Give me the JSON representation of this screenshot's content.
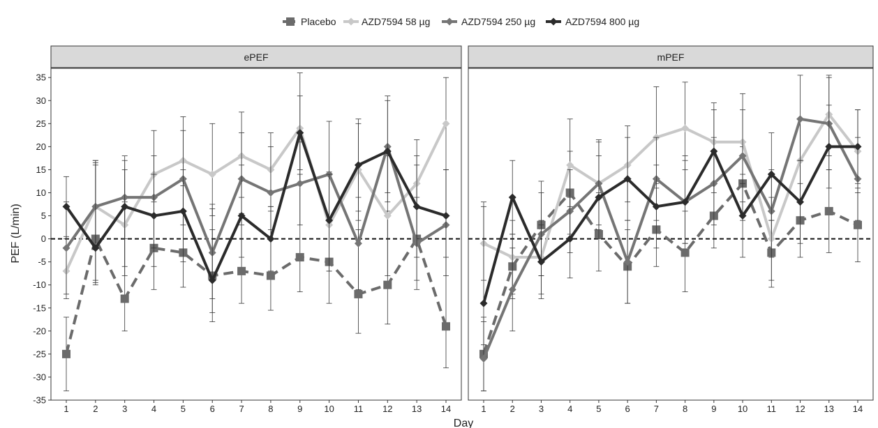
{
  "chart_data": {
    "type": "line",
    "xlabel": "Day",
    "ylabel": "PEF (L/min)",
    "ylim": [
      -35,
      37
    ],
    "yticks": [
      -35,
      -30,
      -25,
      -20,
      -15,
      -10,
      -5,
      0,
      5,
      10,
      15,
      20,
      25,
      30,
      35
    ],
    "x": [
      1,
      2,
      3,
      4,
      5,
      6,
      7,
      8,
      9,
      10,
      11,
      12,
      13,
      14
    ],
    "legend_position": "top",
    "reference_line": 0,
    "series_styles": [
      {
        "color": "#6b6b6b",
        "dash": "dashed",
        "marker": "square"
      },
      {
        "color": "#c8c8c8",
        "dash": "solid",
        "marker": "diamond"
      },
      {
        "color": "#757575",
        "dash": "solid",
        "marker": "diamond"
      },
      {
        "color": "#2b2b2b",
        "dash": "solid",
        "marker": "diamond"
      }
    ],
    "panels": [
      {
        "title": "ePEF",
        "series": [
          {
            "name": "Placebo",
            "values": [
              -25,
              0,
              -13,
              -2,
              -3,
              -8,
              -7,
              -8,
              -4,
              -5,
              -12,
              -10,
              0,
              -19
            ],
            "err_low": [
              -33,
              -9.5,
              -20,
              -11,
              -10.5,
              -16,
              -14,
              -15.5,
              -11.5,
              -14,
              -20.5,
              -18.5,
              -9,
              -28
            ],
            "err_high": [
              -17,
              16.5,
              8,
              8,
              11.5,
              7.5,
              5.5,
              7,
              14,
              4.5,
              2,
              6,
              16,
              15
            ]
          },
          {
            "name": "AZD7594 58 µg",
            "values": [
              -7,
              7,
              3,
              14,
              17,
              14,
              18,
              15,
              24,
              3,
              15,
              5,
              12,
              25
            ],
            "err_low": [
              -13,
              -9,
              -8,
              5,
              6,
              5,
              9,
              6,
              12,
              -7,
              4,
              -8,
              0,
              15
            ],
            "err_high": [
              0.5,
              17,
              15,
              23.5,
              26.5,
              25,
              27.5,
              23,
              36,
              14.5,
              26,
              18,
              21.5,
              35
            ]
          },
          {
            "name": "AZD7594 250 µg",
            "values": [
              -2,
              7,
              9,
              9,
              13,
              -3,
              13,
              10,
              12,
              14,
              -1,
              20,
              -1,
              3
            ],
            "err_low": [
              -12,
              -2,
              0,
              -2,
              3,
              -13,
              3,
              2,
              3,
              4,
              -11,
              8,
              -11,
              -8
            ],
            "err_high": [
              8,
              16,
              18,
              18,
              23.5,
              6.5,
              23,
              20,
              21,
              25.5,
              9,
              31,
              9,
              15
            ]
          },
          {
            "name": "AZD7594 800 µg",
            "values": [
              7,
              -2,
              7,
              5,
              6,
              -9,
              5,
              0,
              23,
              4,
              16,
              19,
              7,
              5
            ],
            "err_low": [
              0,
              -10,
              -6,
              -6,
              -5,
              -18,
              -4,
              -7,
              15,
              -7,
              6,
              10,
              -4,
              -4
            ],
            "err_high": [
              13.5,
              17,
              17,
              14,
              15,
              2,
              16,
              7,
              31,
              14,
              25,
              30,
              18,
              15
            ]
          }
        ]
      },
      {
        "title": "mPEF",
        "series": [
          {
            "name": "Placebo",
            "values": [
              -25,
              -6,
              3,
              10,
              1,
              -6,
              2,
              -3,
              5,
              12,
              -3,
              4,
              6,
              3
            ],
            "err_low": [
              -33,
              -13,
              -8,
              1,
              -7,
              -14,
              -6,
              -11.5,
              -2,
              4,
              -10.5,
              -4,
              -3,
              -5
            ],
            "err_high": [
              -17,
              1,
              12.5,
              19,
              10,
              2,
              11,
              6,
              12,
              20,
              4,
              12,
              15,
              12
            ]
          },
          {
            "name": "AZD7594 58 µg",
            "values": [
              -1,
              -4,
              -4,
              16,
              12,
              16,
              22,
              24,
              21,
              21,
              0,
              17,
              27,
              19
            ],
            "err_low": [
              -9,
              -12,
              -12,
              7,
              3,
              8,
              12,
              15,
              12,
              12,
              -9,
              8,
              18,
              10
            ],
            "err_high": [
              7,
              4,
              4,
              26,
              21.5,
              24.5,
              33,
              34,
              29.5,
              31.5,
              9,
              26,
              35.5,
              28
            ]
          },
          {
            "name": "AZD7594 250 µg",
            "values": [
              -26,
              -11,
              1,
              6,
              12,
              -5,
              13,
              8,
              12,
              18,
              6,
              26,
              25,
              13
            ],
            "err_low": [
              -33,
              -20,
              -8,
              -3,
              2,
              -14,
              4,
              -1,
              3,
              8,
              -4,
              17,
              15,
              4
            ],
            "err_high": [
              -18,
              -2,
              10,
              15,
              21,
              4,
              22,
              18,
              22,
              28,
              15,
              35.5,
              35,
              22
            ]
          },
          {
            "name": "AZD7594 800 µg",
            "values": [
              -14,
              9,
              -5,
              0,
              9,
              13,
              7,
              8,
              19,
              5,
              14,
              8,
              20,
              20
            ],
            "err_low": [
              -23,
              1,
              -13,
              -8.5,
              0,
              4,
              -2,
              -1,
              10,
              -4,
              4,
              -1,
              11,
              11
            ],
            "err_high": [
              8,
              17,
              3,
              9,
              18,
              22,
              16,
              17,
              28,
              14,
              23,
              17,
              29,
              28
            ]
          }
        ]
      }
    ]
  }
}
